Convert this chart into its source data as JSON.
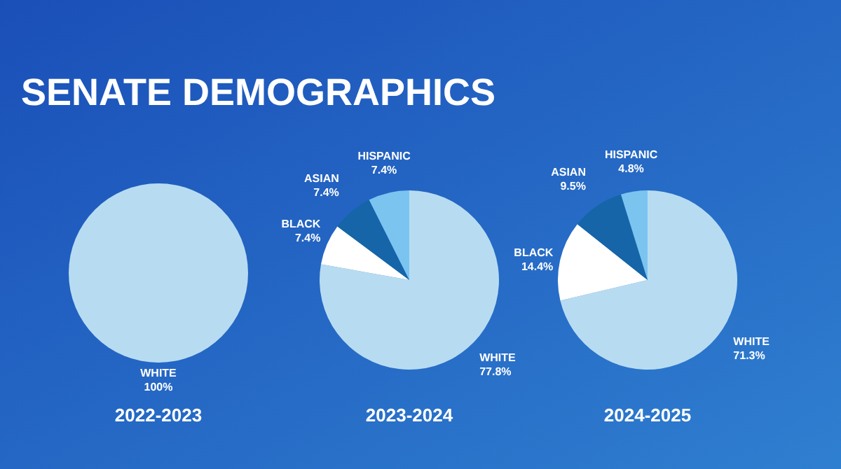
{
  "chart_data": [
    {
      "type": "pie",
      "title": "SENATE DEMOGRAPHICS",
      "xlabel": "2022-2023",
      "categories": [
        "WHITE"
      ],
      "values": [
        100
      ],
      "colors": [
        "#b7dcf2"
      ],
      "value_labels": [
        "100%"
      ]
    },
    {
      "type": "pie",
      "xlabel": "2023-2024",
      "categories": [
        "WHITE",
        "BLACK",
        "ASIAN",
        "HISPANIC"
      ],
      "values": [
        77.8,
        7.4,
        7.4,
        7.4
      ],
      "colors": [
        "#b7dcf2",
        "#ffffff",
        "#1565a8",
        "#7cc4f0"
      ],
      "value_labels": [
        "77.8%",
        "7.4%",
        "7.4%",
        "7.4%"
      ]
    },
    {
      "type": "pie",
      "xlabel": "2024-2025",
      "categories": [
        "WHITE",
        "BLACK",
        "ASIAN",
        "HISPANIC"
      ],
      "values": [
        71.3,
        14.4,
        9.5,
        4.8
      ],
      "colors": [
        "#b7dcf2",
        "#ffffff",
        "#1565a8",
        "#7cc4f0"
      ],
      "value_labels": [
        "71.3%",
        "14.4%",
        "9.5%",
        "4.8%"
      ]
    }
  ]
}
